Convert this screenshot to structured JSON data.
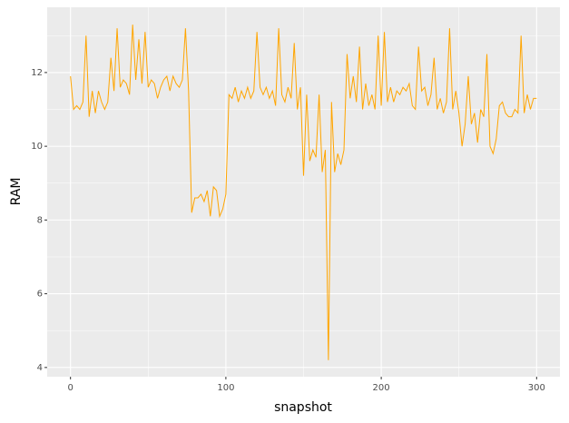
{
  "chart_data": {
    "type": "line",
    "x_label": "snapshot",
    "y_label": "RAM",
    "x": [
      0,
      2,
      4,
      6,
      8,
      10,
      12,
      14,
      16,
      18,
      20,
      22,
      24,
      26,
      28,
      30,
      32,
      34,
      36,
      38,
      40,
      42,
      44,
      46,
      48,
      50,
      52,
      54,
      56,
      58,
      60,
      62,
      64,
      66,
      68,
      70,
      72,
      74,
      76,
      78,
      80,
      82,
      84,
      86,
      88,
      90,
      92,
      94,
      96,
      98,
      100,
      102,
      104,
      106,
      108,
      110,
      112,
      114,
      116,
      118,
      120,
      122,
      124,
      126,
      128,
      130,
      132,
      134,
      136,
      138,
      140,
      142,
      144,
      146,
      148,
      150,
      152,
      154,
      156,
      158,
      160,
      162,
      164,
      166,
      168,
      170,
      172,
      174,
      176,
      178,
      180,
      182,
      184,
      186,
      188,
      190,
      192,
      194,
      196,
      198,
      200,
      202,
      204,
      206,
      208,
      210,
      212,
      214,
      216,
      218,
      220,
      222,
      224,
      226,
      228,
      230,
      232,
      234,
      236,
      238,
      240,
      242,
      244,
      246,
      248,
      250,
      252,
      254,
      256,
      258,
      260,
      262,
      264,
      266,
      268,
      270,
      272,
      274,
      276,
      278,
      280,
      282,
      284,
      286,
      288,
      290,
      292,
      294,
      296,
      298,
      300
    ],
    "values": [
      11.9,
      11.0,
      11.1,
      11.0,
      11.2,
      13.0,
      10.8,
      11.5,
      10.9,
      11.5,
      11.2,
      11.0,
      11.2,
      12.4,
      11.5,
      13.2,
      11.6,
      11.8,
      11.7,
      11.4,
      13.3,
      11.8,
      12.9,
      11.7,
      13.1,
      11.6,
      11.8,
      11.7,
      11.3,
      11.6,
      11.8,
      11.9,
      11.5,
      11.9,
      11.7,
      11.6,
      11.8,
      13.2,
      11.5,
      8.2,
      8.6,
      8.6,
      8.7,
      8.5,
      8.8,
      8.1,
      8.9,
      8.8,
      8.1,
      8.3,
      8.7,
      11.4,
      11.3,
      11.6,
      11.2,
      11.5,
      11.3,
      11.6,
      11.3,
      11.5,
      13.1,
      11.6,
      11.4,
      11.6,
      11.3,
      11.5,
      11.1,
      13.2,
      11.4,
      11.2,
      11.6,
      11.3,
      12.8,
      11.0,
      11.6,
      9.2,
      11.4,
      9.6,
      9.9,
      9.7,
      11.4,
      9.3,
      9.9,
      4.2,
      11.2,
      9.3,
      9.8,
      9.5,
      9.9,
      12.5,
      11.3,
      11.9,
      11.2,
      12.7,
      11.0,
      11.7,
      11.1,
      11.4,
      11.0,
      13.0,
      11.1,
      13.1,
      11.2,
      11.6,
      11.2,
      11.5,
      11.4,
      11.6,
      11.5,
      11.7,
      11.1,
      11.0,
      12.7,
      11.5,
      11.6,
      11.1,
      11.4,
      12.4,
      11.0,
      11.3,
      10.9,
      11.2,
      13.2,
      11.0,
      11.5,
      10.9,
      10.0,
      10.6,
      11.9,
      10.6,
      10.9,
      10.1,
      11.0,
      10.8,
      12.5,
      10.0,
      9.8,
      10.2,
      11.1,
      11.2,
      10.9,
      10.8,
      10.8,
      11.0,
      10.9,
      13.0,
      10.9,
      11.4,
      11.0,
      11.3,
      11.3
    ],
    "color": "#ffa500",
    "xlim": [
      -15,
      315
    ],
    "ylim": [
      3.75,
      13.77
    ],
    "xticks": [
      0,
      100,
      200,
      300
    ],
    "yticks": [
      4,
      6,
      8,
      10,
      12
    ],
    "x_minor_grid": [
      50,
      150,
      250
    ],
    "y_minor_grid": [
      5,
      7,
      9,
      11,
      13
    ],
    "grid": true
  }
}
